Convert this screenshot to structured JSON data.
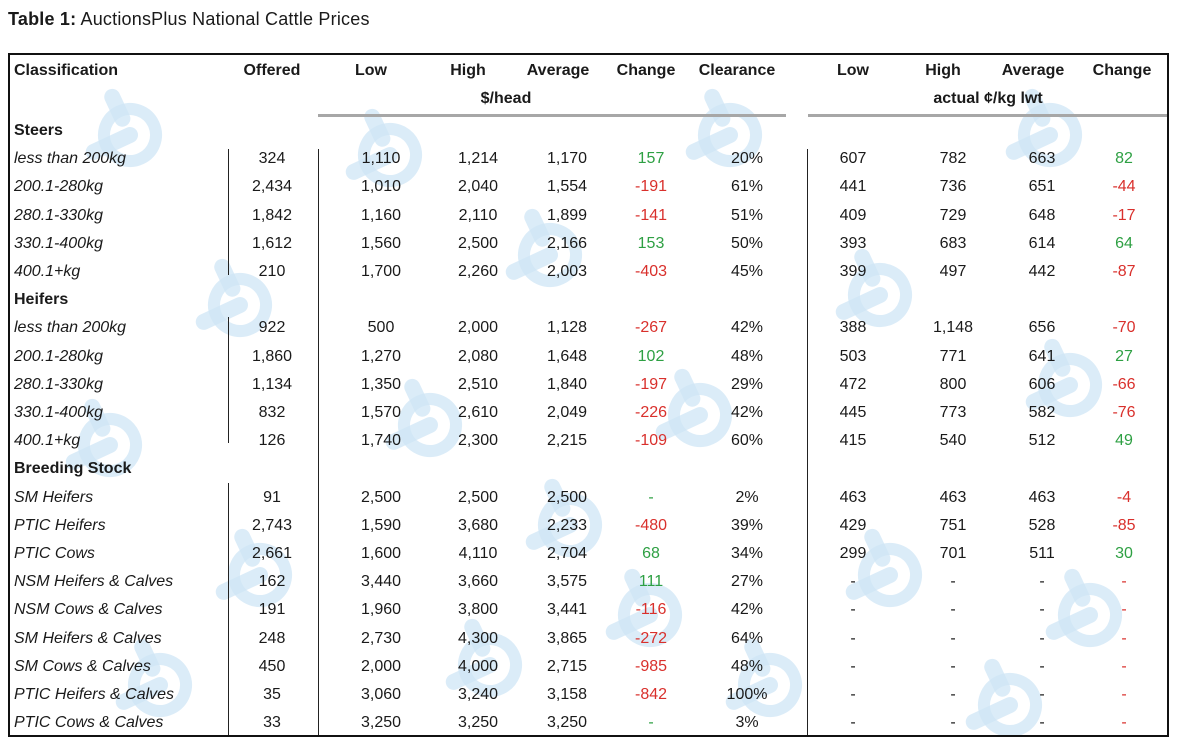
{
  "caption": {
    "label": "Table 1:",
    "text": "AuctionsPlus National Cattle Prices"
  },
  "header": {
    "classification": "Classification",
    "offered": "Offered",
    "low": "Low",
    "high": "High",
    "average": "Average",
    "change": "Change",
    "clearance": "Clearance",
    "head_unit": "$/head",
    "kg_low": "Low",
    "kg_high": "High",
    "kg_average": "Average",
    "kg_change": "Change",
    "kg_unit": "actual ¢/kg lwt"
  },
  "rows": [
    {
      "type": "group",
      "label": "Steers"
    },
    {
      "type": "data",
      "label": "less than 200kg",
      "offered": "324",
      "low": "1,110",
      "high": "1,214",
      "average": "1,170",
      "change": "157",
      "clearance": "20%",
      "kg_low": "607",
      "kg_high": "782",
      "kg_average": "663",
      "kg_change": "82"
    },
    {
      "type": "data",
      "label": "200.1-280kg",
      "offered": "2,434",
      "low": "1,010",
      "high": "2,040",
      "average": "1,554",
      "change": "-191",
      "clearance": "61%",
      "kg_low": "441",
      "kg_high": "736",
      "kg_average": "651",
      "kg_change": "-44"
    },
    {
      "type": "data",
      "label": "280.1-330kg",
      "offered": "1,842",
      "low": "1,160",
      "high": "2,110",
      "average": "1,899",
      "change": "-141",
      "clearance": "51%",
      "kg_low": "409",
      "kg_high": "729",
      "kg_average": "648",
      "kg_change": "-17"
    },
    {
      "type": "data",
      "label": "330.1-400kg",
      "offered": "1,612",
      "low": "1,560",
      "high": "2,500",
      "average": "2,166",
      "change": "153",
      "clearance": "50%",
      "kg_low": "393",
      "kg_high": "683",
      "kg_average": "614",
      "kg_change": "64"
    },
    {
      "type": "data",
      "label": "400.1+kg",
      "offered": "210",
      "low": "1,700",
      "high": "2,260",
      "average": "2,003",
      "change": "-403",
      "clearance": "45%",
      "kg_low": "399",
      "kg_high": "497",
      "kg_average": "442",
      "kg_change": "-87"
    },
    {
      "type": "group",
      "label": "Heifers"
    },
    {
      "type": "data",
      "label": "less than 200kg",
      "offered": "922",
      "low": "500",
      "high": "2,000",
      "average": "1,128",
      "change": "-267",
      "clearance": "42%",
      "kg_low": "388",
      "kg_high": "1,148",
      "kg_average": "656",
      "kg_change": "-70"
    },
    {
      "type": "data",
      "label": "200.1-280kg",
      "offered": "1,860",
      "low": "1,270",
      "high": "2,080",
      "average": "1,648",
      "change": "102",
      "clearance": "48%",
      "kg_low": "503",
      "kg_high": "771",
      "kg_average": "641",
      "kg_change": "27"
    },
    {
      "type": "data",
      "label": "280.1-330kg",
      "offered": "1,134",
      "low": "1,350",
      "high": "2,510",
      "average": "1,840",
      "change": "-197",
      "clearance": "29%",
      "kg_low": "472",
      "kg_high": "800",
      "kg_average": "606",
      "kg_change": "-66"
    },
    {
      "type": "data",
      "label": "330.1-400kg",
      "offered": "832",
      "low": "1,570",
      "high": "2,610",
      "average": "2,049",
      "change": "-226",
      "clearance": "42%",
      "kg_low": "445",
      "kg_high": "773",
      "kg_average": "582",
      "kg_change": "-76"
    },
    {
      "type": "data",
      "label": "400.1+kg",
      "offered": "126",
      "low": "1,740",
      "high": "2,300",
      "average": "2,215",
      "change": "-109",
      "clearance": "60%",
      "kg_low": "415",
      "kg_high": "540",
      "kg_average": "512",
      "kg_change": "49"
    },
    {
      "type": "group",
      "label": "Breeding Stock"
    },
    {
      "type": "data",
      "label": "SM Heifers",
      "offered": "91",
      "low": "2,500",
      "high": "2,500",
      "average": "2,500",
      "change": "-",
      "clearance": "2%",
      "kg_low": "463",
      "kg_high": "463",
      "kg_average": "463",
      "kg_change": "-4"
    },
    {
      "type": "data",
      "label": "PTIC Heifers",
      "offered": "2,743",
      "low": "1,590",
      "high": "3,680",
      "average": "2,233",
      "change": "-480",
      "clearance": "39%",
      "kg_low": "429",
      "kg_high": "751",
      "kg_average": "528",
      "kg_change": "-85"
    },
    {
      "type": "data",
      "label": "PTIC Cows",
      "offered": "2,661",
      "low": "1,600",
      "high": "4,110",
      "average": "2,704",
      "change": "68",
      "clearance": "34%",
      "kg_low": "299",
      "kg_high": "701",
      "kg_average": "511",
      "kg_change": "30"
    },
    {
      "type": "data",
      "label": "NSM Heifers & Calves",
      "offered": "162",
      "low": "3,440",
      "high": "3,660",
      "average": "3,575",
      "change": "111",
      "clearance": "27%",
      "kg_low": "-",
      "kg_high": "-",
      "kg_average": "-",
      "kg_change": "-"
    },
    {
      "type": "data",
      "label": "NSM Cows & Calves",
      "offered": "191",
      "low": "1,960",
      "high": "3,800",
      "average": "3,441",
      "change": "-116",
      "clearance": "42%",
      "kg_low": "-",
      "kg_high": "-",
      "kg_average": "-",
      "kg_change": "-"
    },
    {
      "type": "data",
      "label": "SM Heifers & Calves",
      "offered": "248",
      "low": "2,730",
      "high": "4,300",
      "average": "3,865",
      "change": "-272",
      "clearance": "64%",
      "kg_low": "-",
      "kg_high": "-",
      "kg_average": "-",
      "kg_change": "-"
    },
    {
      "type": "data",
      "label": "SM Cows & Calves",
      "offered": "450",
      "low": "2,000",
      "high": "4,000",
      "average": "2,715",
      "change": "-985",
      "clearance": "48%",
      "kg_low": "-",
      "kg_high": "-",
      "kg_average": "-",
      "kg_change": "-"
    },
    {
      "type": "data",
      "label": "PTIC Heifers & Calves",
      "offered": "35",
      "low": "3,060",
      "high": "3,240",
      "average": "3,158",
      "change": "-842",
      "clearance": "100%",
      "kg_low": "-",
      "kg_high": "-",
      "kg_average": "-",
      "kg_change": "-"
    },
    {
      "type": "data",
      "label": "PTIC Cows & Calves",
      "offered": "33",
      "low": "3,250",
      "high": "3,250",
      "average": "3,250",
      "change": "-",
      "clearance": "3%",
      "kg_low": "-",
      "kg_high": "-",
      "kg_average": "-",
      "kg_change": "-"
    }
  ],
  "colors": {
    "positive": "#2ea043",
    "negative": "#d9302c",
    "watermark": "#cfe6f6"
  }
}
